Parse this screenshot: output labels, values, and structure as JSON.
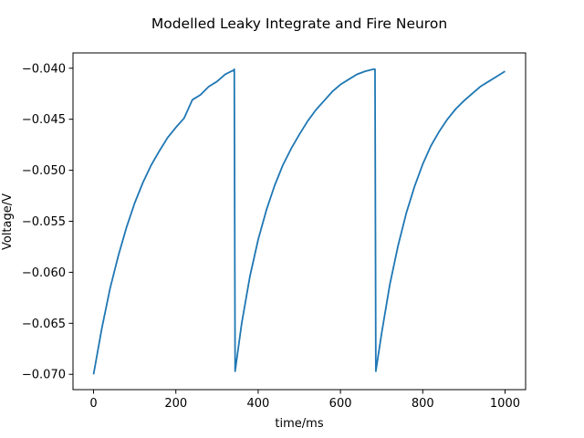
{
  "chart_data": {
    "type": "line",
    "title": "Modelled Leaky Integrate and Fire Neuron",
    "xlabel": "time/ms",
    "ylabel": "Voltage/V",
    "xlim": [
      -50,
      1050
    ],
    "ylim": [
      -0.0715,
      -0.0385
    ],
    "xticks": [
      0,
      200,
      400,
      600,
      800,
      1000
    ],
    "xtick_labels": [
      "0",
      "200",
      "400",
      "600",
      "800",
      "1000"
    ],
    "yticks": [
      -0.07,
      -0.065,
      -0.06,
      -0.055,
      -0.05,
      -0.045,
      -0.04
    ],
    "ytick_labels": [
      "−0.070",
      "−0.065",
      "−0.060",
      "−0.055",
      "−0.050",
      "−0.045",
      "−0.040"
    ],
    "grid": false,
    "line_color": "#1f77b4",
    "series": [
      {
        "x": [
          0,
          20,
          40,
          60,
          80,
          100,
          120,
          140,
          160,
          180,
          200,
          220,
          240,
          260,
          280,
          300,
          320,
          340,
          342,
          344,
          360,
          380,
          400,
          420,
          440,
          460,
          480,
          500,
          520,
          540,
          560,
          580,
          600,
          620,
          640,
          660,
          680,
          684,
          686,
          700,
          720,
          740,
          760,
          780,
          800,
          820,
          840,
          860,
          880,
          900,
          920,
          940,
          960,
          980,
          1000
        ],
        "y": [
          -0.07,
          -0.0655,
          -0.0616,
          -0.0584,
          -0.0556,
          -0.0532,
          -0.0512,
          -0.0495,
          -0.0481,
          -0.0468,
          -0.0458,
          -0.0449,
          -0.0431,
          -0.0426,
          -0.0418,
          -0.0413,
          -0.0406,
          -0.0402,
          -0.0401,
          -0.0697,
          -0.065,
          -0.0604,
          -0.0568,
          -0.0539,
          -0.0515,
          -0.0495,
          -0.0479,
          -0.0465,
          -0.0452,
          -0.0441,
          -0.0432,
          -0.0423,
          -0.0416,
          -0.0411,
          -0.0406,
          -0.0403,
          -0.0401,
          -0.0401,
          -0.0697,
          -0.066,
          -0.0612,
          -0.0574,
          -0.0542,
          -0.0516,
          -0.0494,
          -0.0476,
          -0.0462,
          -0.045,
          -0.044,
          -0.0432,
          -0.0425,
          -0.0418,
          -0.0413,
          -0.0408,
          -0.0403
        ]
      }
    ]
  }
}
